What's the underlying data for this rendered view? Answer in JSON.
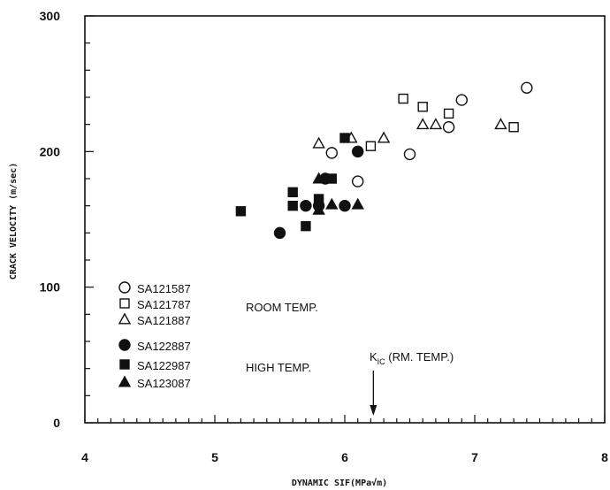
{
  "chart_data": {
    "type": "scatter",
    "xlabel": "DYNAMIC SIF(MPa√m)",
    "ylabel": "CRACK VELOCITY (m/sec)",
    "xlim": [
      4,
      8
    ],
    "ylim": [
      0,
      300
    ],
    "x_ticks": [
      "4",
      "5",
      "6",
      "7",
      "8"
    ],
    "y_ticks": [
      "0",
      "100",
      "200",
      "300"
    ],
    "grid": false,
    "legend_position": "bottom-left",
    "groups": [
      {
        "label": "ROOM TEMP.",
        "series_index": [
          0,
          1,
          2
        ]
      },
      {
        "label": "HIGH TEMP.",
        "series_index": [
          3,
          4,
          5
        ]
      }
    ],
    "annotation": {
      "main": "K",
      "sub": "IC",
      "rest": " (RM. TEMP.)",
      "x": 6.22
    },
    "series": [
      {
        "name": "SA121587",
        "marker": "circle-open",
        "points": [
          [
            5.9,
            199
          ],
          [
            6.1,
            178
          ],
          [
            6.5,
            198
          ],
          [
            6.8,
            218
          ],
          [
            6.9,
            238
          ],
          [
            7.4,
            247
          ]
        ]
      },
      {
        "name": "SA121787",
        "marker": "square-open",
        "points": [
          [
            6.2,
            204
          ],
          [
            6.45,
            239
          ],
          [
            6.6,
            233
          ],
          [
            6.8,
            228
          ],
          [
            7.3,
            218
          ]
        ]
      },
      {
        "name": "SA121887",
        "marker": "triangle-open",
        "points": [
          [
            5.8,
            206
          ],
          [
            6.05,
            210
          ],
          [
            6.3,
            210
          ],
          [
            6.6,
            220
          ],
          [
            6.7,
            220
          ],
          [
            7.2,
            220
          ]
        ]
      },
      {
        "name": "SA122887",
        "marker": "circle-filled",
        "points": [
          [
            5.5,
            140
          ],
          [
            5.7,
            160
          ],
          [
            5.8,
            160
          ],
          [
            5.85,
            180
          ],
          [
            6.0,
            160
          ],
          [
            6.1,
            200
          ]
        ]
      },
      {
        "name": "SA122987",
        "marker": "square-filled",
        "points": [
          [
            5.2,
            156
          ],
          [
            5.6,
            170
          ],
          [
            5.6,
            160
          ],
          [
            5.7,
            145
          ],
          [
            5.8,
            165
          ],
          [
            5.9,
            180
          ],
          [
            6.0,
            210
          ]
        ]
      },
      {
        "name": "SA123087",
        "marker": "triangle-filled",
        "points": [
          [
            5.8,
            180
          ],
          [
            5.8,
            157
          ],
          [
            5.9,
            161
          ],
          [
            6.1,
            161
          ]
        ]
      }
    ]
  }
}
